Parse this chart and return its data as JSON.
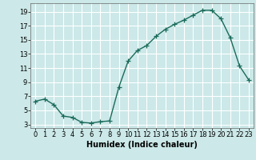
{
  "x": [
    0,
    1,
    2,
    3,
    4,
    5,
    6,
    7,
    8,
    9,
    10,
    11,
    12,
    13,
    14,
    15,
    16,
    17,
    18,
    19,
    20,
    21,
    22,
    23
  ],
  "y": [
    6.3,
    6.6,
    5.8,
    4.2,
    4.0,
    3.3,
    3.2,
    3.4,
    3.5,
    8.3,
    12.0,
    13.5,
    14.2,
    15.5,
    16.5,
    17.2,
    17.8,
    18.5,
    19.2,
    19.2,
    18.0,
    15.3,
    11.3,
    9.3
  ],
  "line_color": "#1a6b5a",
  "marker": "+",
  "marker_size": 4,
  "marker_linewidth": 0.9,
  "background_color": "#cce8e8",
  "grid_color": "#ffffff",
  "xlabel": "Humidex (Indice chaleur)",
  "xlim": [
    -0.5,
    23.5
  ],
  "ylim": [
    2.5,
    20.2
  ],
  "yticks": [
    3,
    5,
    7,
    9,
    11,
    13,
    15,
    17,
    19
  ],
  "xticks": [
    0,
    1,
    2,
    3,
    4,
    5,
    6,
    7,
    8,
    9,
    10,
    11,
    12,
    13,
    14,
    15,
    16,
    17,
    18,
    19,
    20,
    21,
    22,
    23
  ],
  "xlabel_fontsize": 7,
  "tick_fontsize": 6,
  "line_width": 1.0
}
